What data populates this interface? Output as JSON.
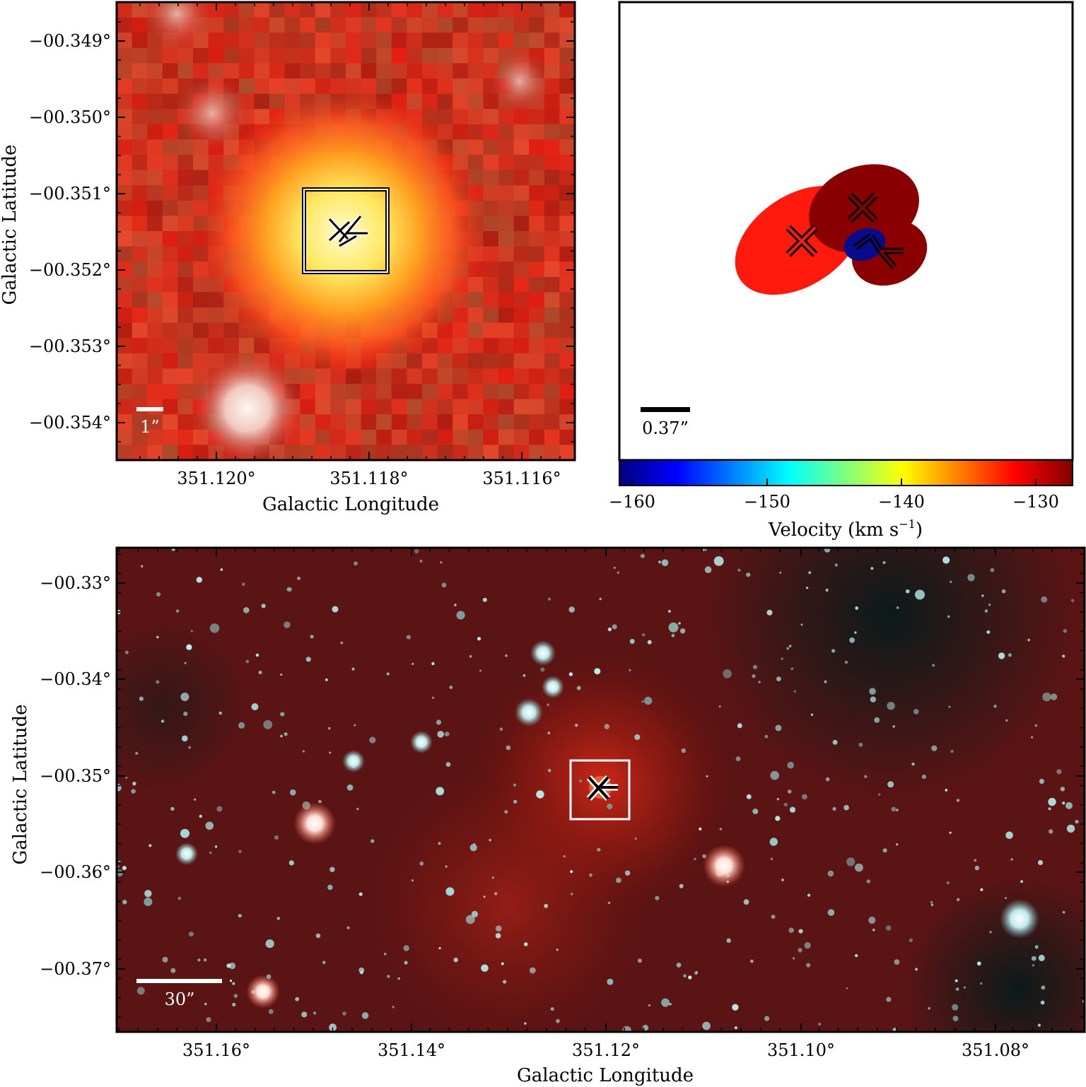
{
  "panel_top_left": {
    "xlabel": "Galactic Longitude",
    "ylabel": "Galactic Latitude",
    "x_ticks": [
      "351.120°",
      "351.118°",
      "351.116°"
    ],
    "y_ticks": [
      "−00.349°",
      "−00.350°",
      "−00.351°",
      "−00.352°",
      "−00.353°",
      "−00.354°"
    ],
    "scalebar_label": "1”"
  },
  "panel_top_right": {
    "scalebar_label": "0.37”",
    "colorbar": {
      "label_main": "Velocity (km s",
      "label_sup": "−1",
      "label_end": ")",
      "ticks": [
        "−160",
        "−150",
        "−140",
        "−130"
      ],
      "colors": [
        "#00007f",
        "#0000ff",
        "#007fff",
        "#00ffff",
        "#7fff7f",
        "#ffff00",
        "#ff7f00",
        "#ff0000",
        "#7f0000"
      ]
    },
    "ellipse_colors": [
      "#ff1a0d",
      "#880000",
      "#8a0000",
      "#0a0a8c"
    ]
  },
  "panel_bottom": {
    "xlabel": "Galactic Longitude",
    "ylabel": "Galactic Latitude",
    "x_ticks": [
      "351.16°",
      "351.14°",
      "351.12°",
      "351.10°",
      "351.08°"
    ],
    "y_ticks": [
      "−00.33°",
      "−00.34°",
      "−00.35°",
      "−00.36°",
      "−00.37°"
    ],
    "scalebar_label": "30”"
  }
}
